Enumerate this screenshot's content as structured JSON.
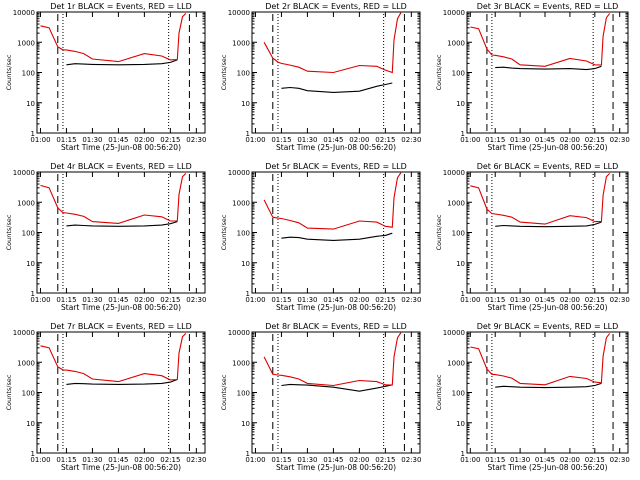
{
  "figure": {
    "xlabel": "Start Time (25-Jun-08 00:56:20)",
    "ylabel": "Counts/sec",
    "colors": {
      "events": "#000000",
      "lld": "#dd0000",
      "axes": "#000000",
      "background": "#ffffff"
    }
  },
  "chart_data": [
    {
      "type": "line",
      "title": "Det 1r BLACK = Events, RED = LLD",
      "xlabel": "Start Time (25-Jun-08 00:56:20)",
      "ylabel": "Counts/sec",
      "y_scale": "log",
      "ylim": [
        1,
        10000
      ],
      "xticks": [
        "01:00",
        "01:15",
        "01:30",
        "01:45",
        "02:00",
        "02:15",
        "02:30"
      ],
      "yticks": [
        "1",
        "10",
        "100",
        "1000",
        "10000"
      ],
      "x": [
        "01:00",
        "01:05",
        "01:10",
        "01:13",
        "01:15",
        "01:20",
        "01:25",
        "01:30",
        "01:45",
        "02:00",
        "02:10",
        "02:15",
        "02:19",
        "02:20",
        "02:22",
        "02:24"
      ],
      "series": [
        {
          "name": "Events",
          "values": [
            null,
            null,
            null,
            null,
            180,
            195,
            190,
            185,
            180,
            185,
            195,
            215,
            260,
            null,
            null,
            null
          ]
        },
        {
          "name": "LLD",
          "values": [
            3500,
            3000,
            700,
            560,
            560,
            500,
            420,
            280,
            230,
            420,
            350,
            260,
            270,
            2000,
            7000,
            9000
          ]
        }
      ],
      "markers": {
        "dashed": [
          "01:10",
          "02:26"
        ],
        "dotted": [
          "01:13",
          "02:14"
        ]
      }
    },
    {
      "type": "line",
      "title": "Det 2r BLACK = Events, RED = LLD",
      "xlabel": "Start Time (25-Jun-08 00:56:20)",
      "ylabel": "Counts/sec",
      "y_scale": "log",
      "ylim": [
        1,
        10000
      ],
      "xticks": [
        "01:00",
        "01:15",
        "01:30",
        "01:45",
        "02:00",
        "02:15",
        "02:30"
      ],
      "yticks": [
        "1",
        "10",
        "100",
        "1000",
        "10000"
      ],
      "x": [
        "01:00",
        "01:05",
        "01:10",
        "01:13",
        "01:15",
        "01:20",
        "01:25",
        "01:30",
        "01:45",
        "02:00",
        "02:10",
        "02:15",
        "02:19",
        "02:20",
        "02:22",
        "02:24"
      ],
      "series": [
        {
          "name": "Events",
          "values": [
            null,
            null,
            null,
            null,
            30,
            32,
            30,
            25,
            22,
            24,
            35,
            40,
            45,
            null,
            null,
            null
          ]
        },
        {
          "name": "LLD",
          "values": [
            null,
            1000,
            300,
            220,
            200,
            175,
            150,
            110,
            100,
            170,
            160,
            120,
            100,
            1200,
            6000,
            9500
          ]
        }
      ],
      "markers": {
        "dashed": [
          "01:10",
          "02:26"
        ],
        "dotted": [
          "01:13",
          "02:14"
        ]
      }
    },
    {
      "type": "line",
      "title": "Det 3r BLACK = Events, RED = LLD",
      "xlabel": "Start Time (25-Jun-08 00:56:20)",
      "ylabel": "Counts/sec",
      "y_scale": "log",
      "ylim": [
        1,
        10000
      ],
      "xticks": [
        "01:00",
        "01:15",
        "01:30",
        "01:45",
        "02:00",
        "02:15",
        "02:30"
      ],
      "yticks": [
        "1",
        "10",
        "100",
        "1000",
        "10000"
      ],
      "x": [
        "01:00",
        "01:05",
        "01:10",
        "01:13",
        "01:15",
        "01:20",
        "01:25",
        "01:30",
        "01:45",
        "02:00",
        "02:10",
        "02:15",
        "02:19",
        "02:20",
        "02:22",
        "02:24"
      ],
      "series": [
        {
          "name": "Events",
          "values": [
            null,
            null,
            null,
            null,
            145,
            150,
            140,
            135,
            130,
            135,
            125,
            135,
            160,
            null,
            null,
            null
          ]
        },
        {
          "name": "LLD",
          "values": [
            3200,
            2800,
            600,
            380,
            370,
            330,
            280,
            180,
            160,
            290,
            240,
            180,
            175,
            1600,
            6500,
            9000
          ]
        }
      ],
      "markers": {
        "dashed": [
          "01:10",
          "02:26"
        ],
        "dotted": [
          "01:13",
          "02:14"
        ]
      }
    },
    {
      "type": "line",
      "title": "Det 4r BLACK = Events, RED = LLD",
      "xlabel": "Start Time (25-Jun-08 00:56:20)",
      "ylabel": "Counts/sec",
      "y_scale": "log",
      "ylim": [
        1,
        10000
      ],
      "xticks": [
        "01:00",
        "01:15",
        "01:30",
        "01:45",
        "02:00",
        "02:15",
        "02:30"
      ],
      "yticks": [
        "1",
        "10",
        "100",
        "1000",
        "10000"
      ],
      "x": [
        "01:00",
        "01:05",
        "01:10",
        "01:13",
        "01:15",
        "01:20",
        "01:25",
        "01:30",
        "01:45",
        "02:00",
        "02:10",
        "02:15",
        "02:19",
        "02:20",
        "02:22",
        "02:24"
      ],
      "series": [
        {
          "name": "Events",
          "values": [
            null,
            null,
            null,
            null,
            165,
            175,
            170,
            165,
            160,
            165,
            175,
            195,
            230,
            null,
            null,
            null
          ]
        },
        {
          "name": "LLD",
          "values": [
            3600,
            3000,
            650,
            450,
            440,
            400,
            340,
            230,
            200,
            380,
            330,
            240,
            240,
            1800,
            7000,
            9000
          ]
        }
      ],
      "markers": {
        "dashed": [
          "01:10",
          "02:26"
        ],
        "dotted": [
          "01:13",
          "02:14"
        ]
      }
    },
    {
      "type": "line",
      "title": "Det 5r BLACK = Events, RED = LLD",
      "xlabel": "Start Time (25-Jun-08 00:56:20)",
      "ylabel": "Counts/sec",
      "y_scale": "log",
      "ylim": [
        1,
        10000
      ],
      "xticks": [
        "01:00",
        "01:15",
        "01:30",
        "01:45",
        "02:00",
        "02:15",
        "02:30"
      ],
      "yticks": [
        "1",
        "10",
        "100",
        "1000",
        "10000"
      ],
      "x": [
        "01:00",
        "01:05",
        "01:10",
        "01:13",
        "01:15",
        "01:20",
        "01:25",
        "01:30",
        "01:45",
        "02:00",
        "02:10",
        "02:15",
        "02:19",
        "02:20",
        "02:22",
        "02:24"
      ],
      "series": [
        {
          "name": "Events",
          "values": [
            null,
            null,
            null,
            null,
            65,
            70,
            68,
            60,
            55,
            60,
            75,
            80,
            95,
            null,
            null,
            null
          ]
        },
        {
          "name": "LLD",
          "values": [
            null,
            1200,
            320,
            300,
            290,
            250,
            210,
            140,
            130,
            240,
            220,
            160,
            150,
            1400,
            6500,
            9500
          ]
        }
      ],
      "markers": {
        "dashed": [
          "01:10",
          "02:26"
        ],
        "dotted": [
          "01:13",
          "02:14"
        ]
      }
    },
    {
      "type": "line",
      "title": "Det 6r BLACK = Events, RED = LLD",
      "xlabel": "Start Time (25-Jun-08 00:56:20)",
      "ylabel": "Counts/sec",
      "y_scale": "log",
      "ylim": [
        1,
        10000
      ],
      "xticks": [
        "01:00",
        "01:15",
        "01:30",
        "01:45",
        "02:00",
        "02:15",
        "02:30"
      ],
      "yticks": [
        "1",
        "10",
        "100",
        "1000",
        "10000"
      ],
      "x": [
        "01:00",
        "01:05",
        "01:10",
        "01:13",
        "01:15",
        "01:20",
        "01:25",
        "01:30",
        "01:45",
        "02:00",
        "02:10",
        "02:15",
        "02:19",
        "02:20",
        "02:22",
        "02:24"
      ],
      "series": [
        {
          "name": "Events",
          "values": [
            null,
            null,
            null,
            null,
            160,
            170,
            165,
            160,
            155,
            160,
            165,
            185,
            220,
            null,
            null,
            null
          ]
        },
        {
          "name": "LLD",
          "values": [
            3500,
            3000,
            600,
            420,
            410,
            370,
            320,
            220,
            190,
            360,
            310,
            230,
            230,
            1700,
            7000,
            9000
          ]
        }
      ],
      "markers": {
        "dashed": [
          "01:10",
          "02:26"
        ],
        "dotted": [
          "01:13",
          "02:14"
        ]
      }
    },
    {
      "type": "line",
      "title": "Det 7r BLACK = Events, RED = LLD",
      "xlabel": "Start Time (25-Jun-08 00:56:20)",
      "ylabel": "Counts/sec",
      "y_scale": "log",
      "ylim": [
        1,
        10000
      ],
      "xticks": [
        "01:00",
        "01:15",
        "01:30",
        "01:45",
        "02:00",
        "02:15",
        "02:30"
      ],
      "yticks": [
        "1",
        "10",
        "100",
        "1000",
        "10000"
      ],
      "x": [
        "01:00",
        "01:05",
        "01:10",
        "01:13",
        "01:15",
        "01:20",
        "01:25",
        "01:30",
        "01:45",
        "02:00",
        "02:10",
        "02:15",
        "02:19",
        "02:20",
        "02:22",
        "02:24"
      ],
      "series": [
        {
          "name": "Events",
          "values": [
            null,
            null,
            null,
            null,
            185,
            200,
            195,
            190,
            185,
            190,
            200,
            220,
            270,
            null,
            null,
            null
          ]
        },
        {
          "name": "LLD",
          "values": [
            3500,
            3000,
            700,
            560,
            550,
            500,
            420,
            280,
            230,
            420,
            360,
            260,
            270,
            2000,
            7000,
            9000
          ]
        }
      ],
      "markers": {
        "dashed": [
          "01:10",
          "02:26"
        ],
        "dotted": [
          "01:13",
          "02:14"
        ]
      }
    },
    {
      "type": "line",
      "title": "Det 8r BLACK = Events, RED = LLD",
      "xlabel": "Start Time (25-Jun-08 00:56:20)",
      "ylabel": "Counts/sec",
      "y_scale": "log",
      "ylim": [
        1,
        10000
      ],
      "xticks": [
        "01:00",
        "01:15",
        "01:30",
        "01:45",
        "02:00",
        "02:15",
        "02:30"
      ],
      "yticks": [
        "1",
        "10",
        "100",
        "1000",
        "10000"
      ],
      "x": [
        "01:00",
        "01:05",
        "01:10",
        "01:13",
        "01:15",
        "01:20",
        "01:25",
        "01:30",
        "01:45",
        "02:00",
        "02:10",
        "02:15",
        "02:19",
        "02:20",
        "02:22",
        "02:24"
      ],
      "series": [
        {
          "name": "Events",
          "values": [
            null,
            null,
            null,
            null,
            170,
            185,
            180,
            175,
            150,
            110,
            140,
            160,
            180,
            null,
            null,
            null
          ]
        },
        {
          "name": "LLD",
          "values": [
            null,
            1500,
            400,
            380,
            370,
            330,
            280,
            200,
            170,
            250,
            230,
            180,
            175,
            1500,
            6500,
            9500
          ]
        }
      ],
      "markers": {
        "dashed": [
          "01:10",
          "02:26"
        ],
        "dotted": [
          "01:13",
          "02:14"
        ]
      }
    },
    {
      "type": "line",
      "title": "Det 9r BLACK = Events, RED = LLD",
      "xlabel": "Start Time (25-Jun-08 00:56:20)",
      "ylabel": "Counts/sec",
      "y_scale": "log",
      "ylim": [
        1,
        10000
      ],
      "xticks": [
        "01:00",
        "01:15",
        "01:30",
        "01:45",
        "02:00",
        "02:15",
        "02:30"
      ],
      "yticks": [
        "1",
        "10",
        "100",
        "1000",
        "10000"
      ],
      "x": [
        "01:00",
        "01:05",
        "01:10",
        "01:13",
        "01:15",
        "01:20",
        "01:25",
        "01:30",
        "01:45",
        "02:00",
        "02:10",
        "02:15",
        "02:19",
        "02:20",
        "02:22",
        "02:24"
      ],
      "series": [
        {
          "name": "Events",
          "values": [
            null,
            null,
            null,
            null,
            150,
            160,
            155,
            150,
            145,
            150,
            155,
            170,
            200,
            null,
            null,
            null
          ]
        },
        {
          "name": "LLD",
          "values": [
            3200,
            2800,
            600,
            400,
            390,
            350,
            300,
            200,
            180,
            340,
            290,
            220,
            210,
            1600,
            6500,
            9000
          ]
        }
      ],
      "markers": {
        "dashed": [
          "01:10",
          "02:26"
        ],
        "dotted": [
          "01:13",
          "02:14"
        ]
      }
    }
  ]
}
